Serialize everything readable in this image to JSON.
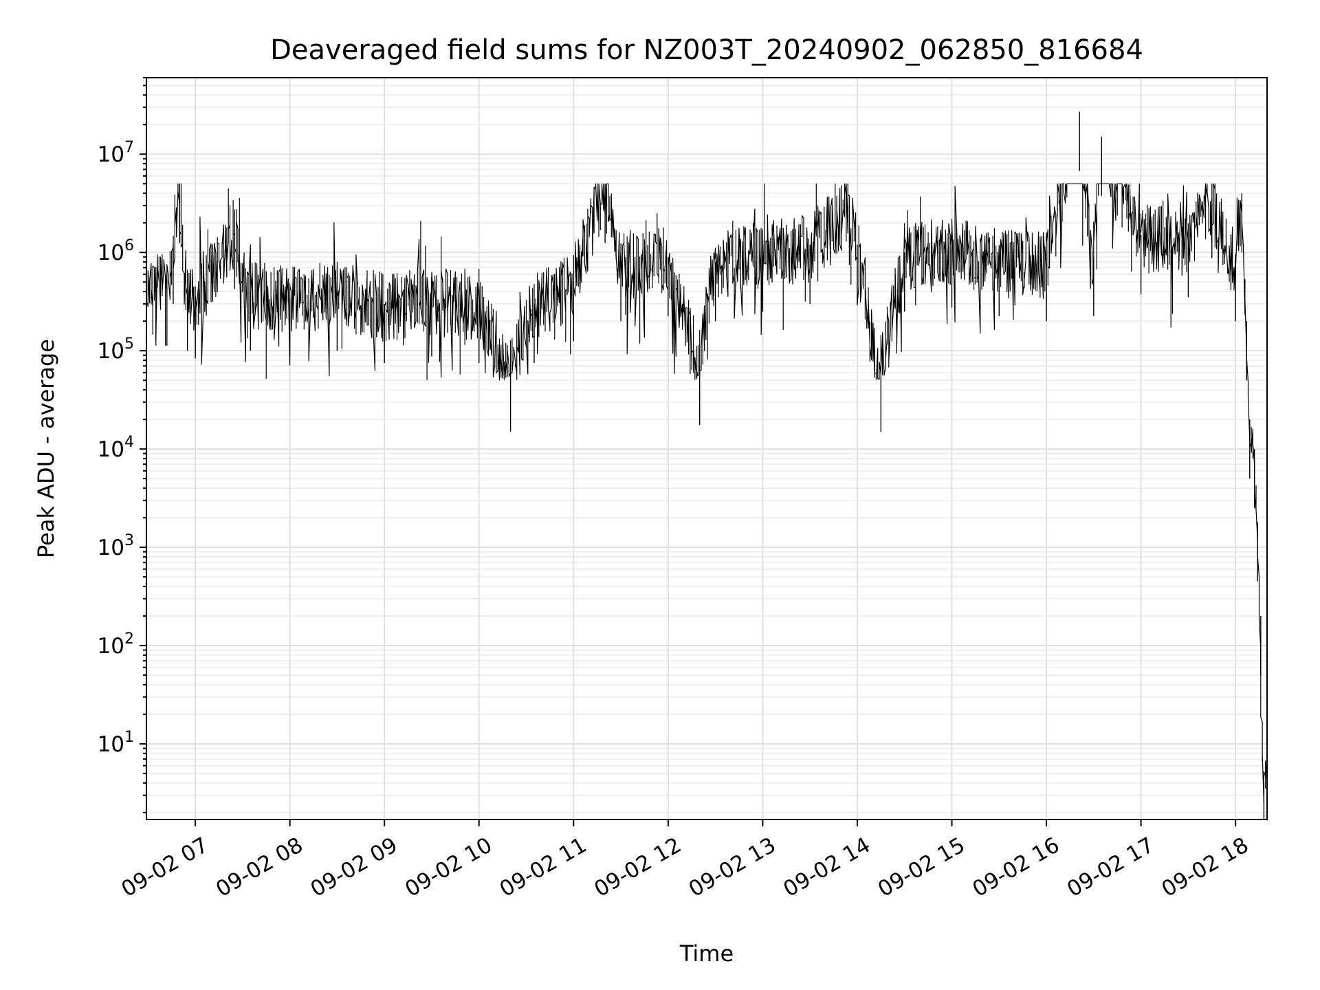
{
  "chart_data": {
    "type": "line",
    "title": "Deaveraged field sums for NZ003T_20240902_062850_816684",
    "xlabel": "Time",
    "ylabel": "Peak ADU - average",
    "y_scale": "log",
    "ylim": [
      1.7,
      60000000
    ],
    "xlim": [
      "2024-09-02 06:29",
      "2024-09-02 18:20"
    ],
    "grid": true,
    "color": "#000000",
    "x_ticks": [
      {
        "value": "2024-09-02 07:00",
        "label": "09-02 07"
      },
      {
        "value": "2024-09-02 08:00",
        "label": "09-02 08"
      },
      {
        "value": "2024-09-02 09:00",
        "label": "09-02 09"
      },
      {
        "value": "2024-09-02 10:00",
        "label": "09-02 10"
      },
      {
        "value": "2024-09-02 11:00",
        "label": "09-02 11"
      },
      {
        "value": "2024-09-02 12:00",
        "label": "09-02 12"
      },
      {
        "value": "2024-09-02 13:00",
        "label": "09-02 13"
      },
      {
        "value": "2024-09-02 14:00",
        "label": "09-02 14"
      },
      {
        "value": "2024-09-02 15:00",
        "label": "09-02 15"
      },
      {
        "value": "2024-09-02 16:00",
        "label": "09-02 16"
      },
      {
        "value": "2024-09-02 17:00",
        "label": "09-02 17"
      },
      {
        "value": "2024-09-02 18:00",
        "label": "09-02 18"
      }
    ],
    "y_ticks": [
      {
        "value": 10,
        "base": "10",
        "exp": "1"
      },
      {
        "value": 100,
        "base": "10",
        "exp": "2"
      },
      {
        "value": 1000,
        "base": "10",
        "exp": "3"
      },
      {
        "value": 10000,
        "base": "10",
        "exp": "4"
      },
      {
        "value": 100000,
        "base": "10",
        "exp": "5"
      },
      {
        "value": 1000000,
        "base": "10",
        "exp": "6"
      },
      {
        "value": 10000000,
        "base": "10",
        "exp": "7"
      }
    ],
    "series": [
      {
        "x": [
          "2024-09-02 06:29",
          "2024-09-02 06:35",
          "2024-09-02 06:42",
          "2024-09-02 06:46",
          "2024-09-02 06:50",
          "2024-09-02 06:55",
          "2024-09-02 07:00",
          "2024-09-02 07:25",
          "2024-09-02 07:35",
          "2024-09-02 08:00",
          "2024-09-02 08:30",
          "2024-09-02 09:00",
          "2024-09-02 09:30",
          "2024-09-02 10:00",
          "2024-09-02 10:20",
          "2024-09-02 10:35",
          "2024-09-02 11:00",
          "2024-09-02 11:20",
          "2024-09-02 11:30",
          "2024-09-02 12:00",
          "2024-09-02 12:20",
          "2024-09-02 12:30",
          "2024-09-02 13:00",
          "2024-09-02 13:30",
          "2024-09-02 13:55",
          "2024-09-02 14:00",
          "2024-09-02 14:15",
          "2024-09-02 14:30",
          "2024-09-02 15:00",
          "2024-09-02 15:30",
          "2024-09-02 16:00",
          "2024-09-02 16:21",
          "2024-09-02 16:30",
          "2024-09-02 16:35",
          "2024-09-02 17:00",
          "2024-09-02 17:30",
          "2024-09-02 17:45",
          "2024-09-02 18:00",
          "2024-09-02 18:04",
          "2024-09-02 18:07",
          "2024-09-02 18:09",
          "2024-09-02 18:12",
          "2024-09-02 18:14",
          "2024-09-02 18:16",
          "2024-09-02 18:18",
          "2024-09-02 18:20"
        ],
        "y": [
          600000,
          500000,
          450000,
          1200000,
          5000000,
          400000,
          350000,
          1700000,
          400000,
          350000,
          400000,
          300000,
          350000,
          300000,
          60000,
          300000,
          500000,
          5000000,
          800000,
          900000,
          70000,
          800000,
          1000000,
          1200000,
          3000000,
          1200000,
          60000,
          1000000,
          1100000,
          900000,
          800000,
          27000000,
          900000,
          15000000,
          1500000,
          1400000,
          3500000,
          800000,
          4000000,
          200000,
          20000,
          10000,
          1800,
          200,
          4,
          4
        ]
      }
    ]
  }
}
